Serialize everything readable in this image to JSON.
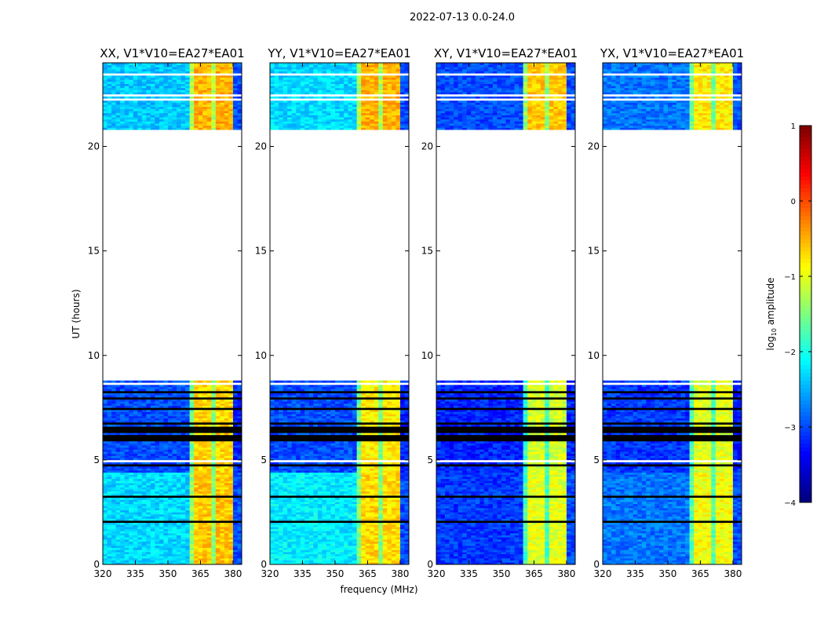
{
  "chart_data": {
    "type": "heatmap",
    "title": "2022-07-13 0.0-24.0",
    "xlabel": "frequency (MHz)",
    "ylabel": "UT (hours)",
    "xlim": [
      320,
      384
    ],
    "ylim": [
      0,
      24
    ],
    "xticks": [
      "320",
      "335",
      "350",
      "365",
      "380"
    ],
    "xtick_values": [
      320,
      335,
      350,
      365,
      380
    ],
    "yticks": [
      "0",
      "5",
      "10",
      "15",
      "20"
    ],
    "ytick_values": [
      0,
      5,
      10,
      15,
      20
    ],
    "colorbar": {
      "label": "log10 amplitude",
      "label_main": "log",
      "label_sub": "10",
      "label_rest": " amplitude",
      "range": [
        -4,
        1
      ],
      "ticks": [
        "1",
        "0",
        "−1",
        "−2",
        "−3",
        "−4"
      ],
      "tick_values": [
        1,
        0,
        -1,
        -2,
        -3,
        -4
      ],
      "colormap": "jet"
    },
    "time_ranges_with_data": [
      [
        0,
        8.7
      ],
      [
        20.8,
        24
      ]
    ],
    "panels": [
      {
        "title": "XX, V1*V10=EA27*EA01",
        "bands": [
          {
            "freq": [
              320,
              360
            ],
            "log_amp_early": -2.3,
            "log_amp_mid": -3.0,
            "log_amp_late": -2.4
          },
          {
            "freq": [
              360,
              380
            ],
            "log_amp_early": -0.6,
            "log_amp_mid": -0.7,
            "log_amp_late": -0.5
          },
          {
            "freq": [
              380,
              384
            ],
            "log_amp_early": -3.0,
            "log_amp_mid": -3.2,
            "log_amp_late": -3.0
          }
        ]
      },
      {
        "title": "YY, V1*V10=EA27*EA01",
        "bands": [
          {
            "freq": [
              320,
              360
            ],
            "log_amp_early": -2.2,
            "log_amp_mid": -3.0,
            "log_amp_late": -2.3
          },
          {
            "freq": [
              360,
              380
            ],
            "log_amp_early": -0.7,
            "log_amp_mid": -0.8,
            "log_amp_late": -0.5
          },
          {
            "freq": [
              380,
              384
            ],
            "log_amp_early": -3.0,
            "log_amp_mid": -3.2,
            "log_amp_late": -3.0
          }
        ]
      },
      {
        "title": "XY, V1*V10=EA27*EA01",
        "bands": [
          {
            "freq": [
              320,
              360
            ],
            "log_amp_early": -3.1,
            "log_amp_mid": -3.2,
            "log_amp_late": -3.0
          },
          {
            "freq": [
              360,
              380
            ],
            "log_amp_early": -1.0,
            "log_amp_mid": -1.1,
            "log_amp_late": -0.6
          },
          {
            "freq": [
              380,
              384
            ],
            "log_amp_early": -3.0,
            "log_amp_mid": -3.2,
            "log_amp_late": -3.0
          }
        ]
      },
      {
        "title": "YX, V1*V10=EA27*EA01",
        "bands": [
          {
            "freq": [
              320,
              360
            ],
            "log_amp_early": -2.8,
            "log_amp_mid": -3.1,
            "log_amp_late": -2.8
          },
          {
            "freq": [
              360,
              380
            ],
            "log_amp_early": -0.9,
            "log_amp_mid": -1.0,
            "log_amp_late": -0.8
          },
          {
            "freq": [
              380,
              384
            ],
            "log_amp_early": -3.0,
            "log_amp_mid": -3.2,
            "log_amp_late": -3.0
          }
        ]
      }
    ]
  }
}
